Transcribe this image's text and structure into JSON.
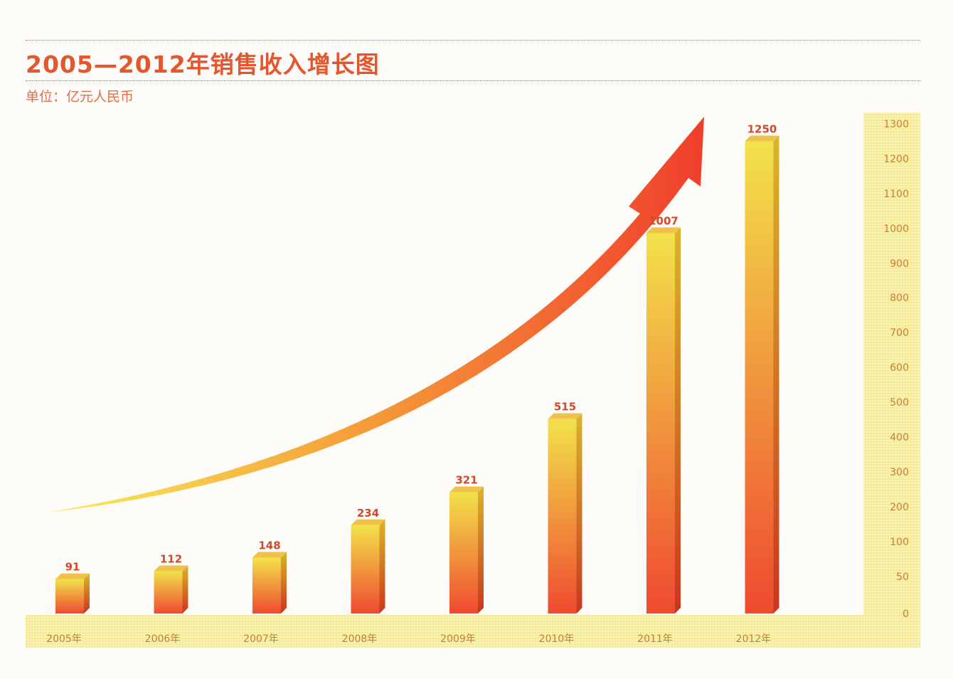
{
  "title": "2005—2012年销售收入增长图",
  "unit_label": "单位：亿元人民币",
  "chart_data": {
    "type": "bar",
    "categories": [
      "2005年",
      "2006年",
      "2007年",
      "2008年",
      "2009年",
      "2010年",
      "2011年",
      "2012年"
    ],
    "values": [
      91,
      112,
      148,
      234,
      321,
      515,
      1007,
      1250
    ],
    "ylim": [
      0,
      1300
    ],
    "yticks": [
      0,
      50,
      100,
      200,
      300,
      400,
      500,
      600,
      700,
      800,
      900,
      1000,
      1100,
      1200,
      1300
    ],
    "ytick_labels": [
      "0",
      "50",
      "100",
      "200",
      "300",
      "400",
      "500",
      "600",
      "700",
      "800",
      "900",
      "1000",
      "1100",
      "1200",
      "1300"
    ],
    "axis_side": "right",
    "trend_arrow": true,
    "grid": false,
    "colors": {
      "bar_top": "#f2e24a",
      "bar_bottom": "#ef4a30",
      "axis_band": "#f6ef9a",
      "arrow": "#f04a30",
      "text": "#e4562e"
    }
  }
}
